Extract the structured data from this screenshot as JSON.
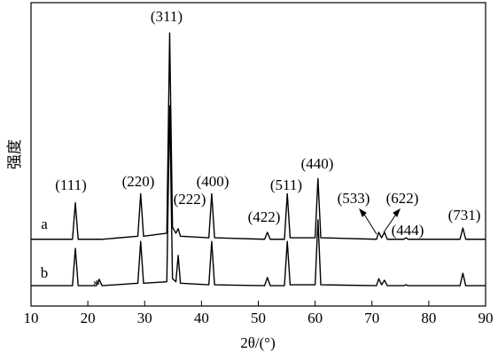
{
  "chart_data": {
    "type": "line",
    "xlabel": "2θ/(°)",
    "ylabel": "强度",
    "xlim": [
      10,
      90
    ],
    "xticks": [
      10,
      20,
      30,
      40,
      50,
      60,
      70,
      80,
      90
    ],
    "ylim": [
      0,
      100
    ],
    "x": [
      10,
      17.3,
      17.8,
      18.3,
      21.5,
      22,
      22.5,
      28.8,
      29.3,
      29.8,
      33.9,
      34.4,
      34.9,
      35.5,
      35.9,
      36.3,
      41.3,
      41.8,
      42.3,
      51.1,
      51.6,
      52.1,
      54.6,
      55.1,
      55.6,
      60,
      60.5,
      61,
      70.8,
      71.2,
      71.7,
      72.2,
      72.7,
      75.6,
      76,
      76.4,
      85.5,
      86,
      86.5,
      90
    ],
    "series": [
      {
        "name": "a",
        "color": "#000000",
        "values": [
          22,
          22,
          34,
          22,
          22,
          22,
          22,
          23,
          37,
          23,
          24,
          90,
          26,
          24,
          25.5,
          23,
          22.5,
          37,
          22.5,
          22,
          24.3,
          22,
          22,
          37,
          22.5,
          22.5,
          42,
          22.5,
          22,
          24.3,
          22.5,
          24.3,
          22,
          22,
          22.5,
          22,
          22,
          25.7,
          22,
          22
        ]
      },
      {
        "name": "b",
        "color": "#000000",
        "values": [
          6.7,
          6.7,
          19,
          6.7,
          6.7,
          8.8,
          6.7,
          7.5,
          21.3,
          7.5,
          8,
          66,
          9,
          8,
          16.7,
          7.5,
          7,
          21.3,
          7,
          6.7,
          9.4,
          6.7,
          6.7,
          21.3,
          7,
          7,
          28.4,
          7,
          6.7,
          9,
          7,
          8.5,
          6.7,
          6.7,
          7,
          6.7,
          6.7,
          10.8,
          6.7,
          6.7
        ]
      }
    ],
    "annotations": [
      "(111)",
      "(220)",
      "(311)",
      "(222)",
      "(400)",
      "(422)",
      "(511)",
      "(440)",
      "(533)",
      "(622)",
      "(444)",
      "(731)",
      "*"
    ]
  }
}
